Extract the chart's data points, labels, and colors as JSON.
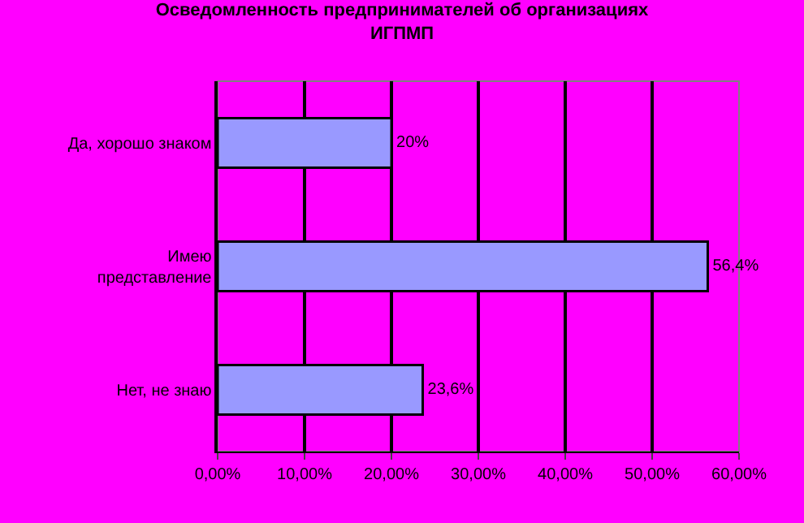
{
  "chart_data": {
    "type": "bar",
    "orientation": "horizontal",
    "title": "Осведомленность предпринимателей об организациях\nИГПМП",
    "categories": [
      "Да, хорошо знаком",
      "Имею\nпредставление",
      "Нет, не знаю"
    ],
    "values": [
      20,
      56.4,
      23.6
    ],
    "value_labels": [
      "20%",
      "56,4%",
      "23,6%"
    ],
    "color": "#9999ff",
    "xlim": [
      0,
      60
    ],
    "xticks": [
      {
        "value": 0,
        "label": "0,00%"
      },
      {
        "value": 10,
        "label": "10,00%"
      },
      {
        "value": 20,
        "label": "20,00%"
      },
      {
        "value": 30,
        "label": "30,00%"
      },
      {
        "value": 40,
        "label": "40,00%"
      },
      {
        "value": 50,
        "label": "50,00%"
      },
      {
        "value": 60,
        "label": "60,00%"
      }
    ],
    "grid": "x",
    "legend": false
  }
}
